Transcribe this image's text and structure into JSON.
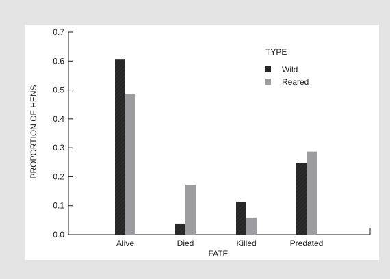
{
  "chart_data": {
    "type": "bar",
    "categories": [
      "Alive",
      "Died",
      "Killed",
      "Predated"
    ],
    "series": [
      {
        "name": "Wild",
        "values": [
          0.605,
          0.038,
          0.113,
          0.246
        ],
        "color": "#262626"
      },
      {
        "name": "Reared",
        "values": [
          0.487,
          0.172,
          0.057,
          0.287
        ],
        "color": "#9d9d9f"
      }
    ],
    "title": "",
    "xlabel": "FATE",
    "ylabel": "PROPORTION OF HENS",
    "ylim": [
      0,
      0.7
    ],
    "yticks": [
      "0.0",
      "0.1",
      "0.2",
      "0.3",
      "0.4",
      "0.5",
      "0.6",
      "0.7"
    ],
    "legend": {
      "title": "TYPE",
      "placement": "top-right"
    },
    "grid": false
  },
  "colors": {
    "background": "#e4e4e5",
    "panel": "#ffffff",
    "axis": "#1a1a1a"
  }
}
